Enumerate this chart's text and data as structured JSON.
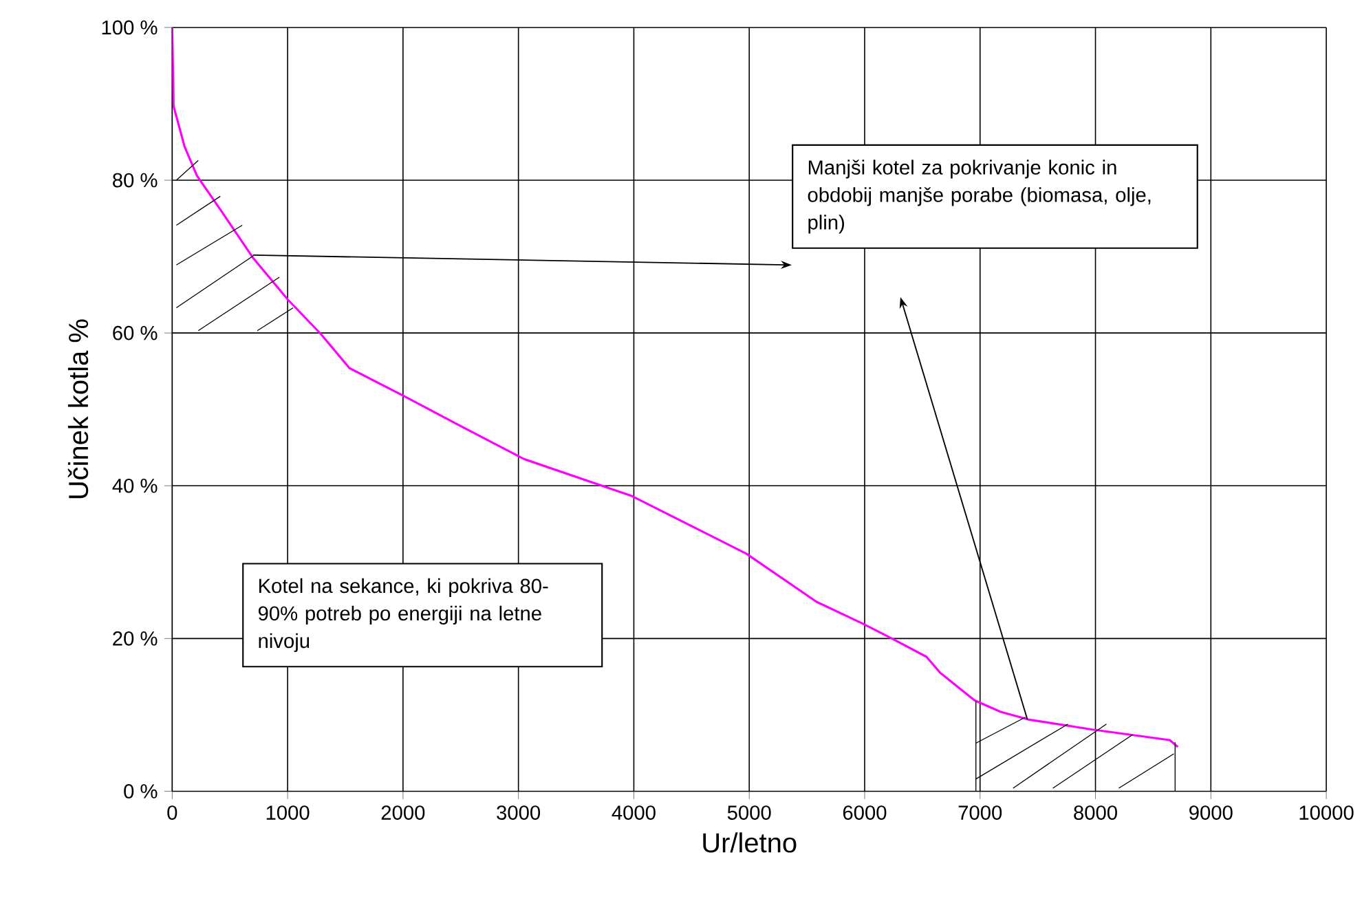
{
  "chart_data": {
    "type": "line",
    "xlabel": "Ur/letno",
    "ylabel": "Učinek kotla %",
    "xlim": [
      0,
      10000
    ],
    "ylim": [
      0,
      100
    ],
    "xticks": [
      0,
      1000,
      2000,
      3000,
      4000,
      5000,
      6000,
      7000,
      8000,
      9000,
      10000
    ],
    "yticks": [
      {
        "value": 0,
        "label": "0 %"
      },
      {
        "value": 20,
        "label": "20 %"
      },
      {
        "value": 40,
        "label": "40 %"
      },
      {
        "value": 60,
        "label": "60 %"
      },
      {
        "value": 80,
        "label": "80 %"
      },
      {
        "value": 100,
        "label": "100 %"
      }
    ],
    "grid": true,
    "marker": "none",
    "line_style": "solid",
    "series": [
      {
        "color": "#ff00ff",
        "x": [
          0,
          12,
          107,
          214,
          429,
          702,
          1000,
          1286,
          1536,
          2000,
          2476,
          3048,
          3976,
          4976,
          5583,
          5976,
          6262,
          6536,
          6655,
          6952,
          7179,
          7417,
          7964,
          8643,
          8714
        ],
        "values": [
          100,
          89.7,
          84.4,
          80.6,
          75.9,
          69.8,
          64.4,
          59.9,
          55.4,
          51.8,
          48.0,
          43.5,
          38.7,
          31.1,
          24.8,
          22.0,
          19.8,
          17.6,
          15.5,
          11.9,
          10.4,
          9.4,
          8.1,
          6.7,
          5.8
        ]
      }
    ],
    "annotations": [
      "Manjši kotel za pokrivanje konic in obdobij manjše porabe (biomasa, olje, plin)",
      "Kotel na sekance, ki pokriva 80-90% potreb po energiji na letne nivoju"
    ]
  }
}
